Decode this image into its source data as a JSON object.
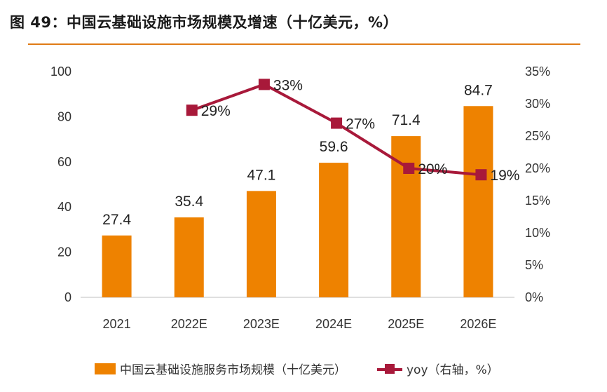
{
  "figure": {
    "title": "图 49：中国云基础设施市场规模及增速（十亿美元，%）"
  },
  "legend": {
    "bar_label": "中国云基础设施服务市场规模（十亿美元）",
    "line_label": "yoy（右轴，%）"
  },
  "colors": {
    "bar": "#ee8200",
    "line": "#a8193a",
    "title_rule": "#e07b16"
  },
  "chart_data": {
    "type": "bar",
    "categories": [
      "2021",
      "2022E",
      "2023E",
      "2024E",
      "2025E",
      "2026E"
    ],
    "series": [
      {
        "name": "中国云基础设施服务市场规模（十亿美元）",
        "type": "bar",
        "axis": "left",
        "values": [
          27.4,
          35.4,
          47.1,
          59.6,
          71.4,
          84.7
        ],
        "labels": [
          "27.4",
          "35.4",
          "47.1",
          "59.6",
          "71.4",
          "84.7"
        ]
      },
      {
        "name": "yoy（右轴，%）",
        "type": "line",
        "axis": "right",
        "values": [
          null,
          29,
          33,
          27,
          20,
          19
        ],
        "labels": [
          "",
          "29%",
          "33%",
          "27%",
          "20%",
          "19%"
        ]
      }
    ],
    "y_left": {
      "min": 0,
      "max": 100,
      "ticks": [
        "0",
        "20",
        "40",
        "60",
        "80",
        "100"
      ]
    },
    "y_right": {
      "min": 0,
      "max": 35,
      "ticks": [
        "0%",
        "5%",
        "10%",
        "15%",
        "20%",
        "25%",
        "30%",
        "35%"
      ]
    },
    "grid": false,
    "legend_position": "bottom"
  }
}
